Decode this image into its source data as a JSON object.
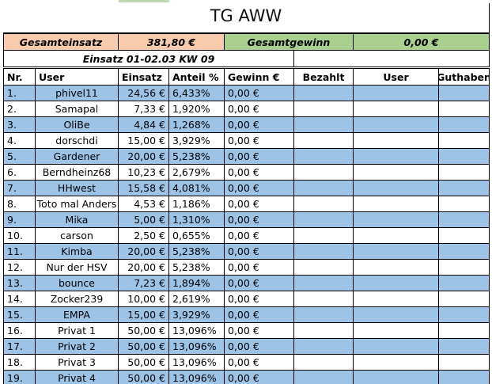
{
  "title": "TG AWW",
  "summary": {
    "gesamteinsatz_label": "Gesamteinsatz",
    "gesamteinsatz_value": "381,80 €",
    "gesamtgewinn_label": "Gesamtgewinn",
    "gesamtgewinn_value": "0,00 €"
  },
  "einsatz_label": "Einsatz 01-02.03 KW 09",
  "headers": {
    "nr": "Nr.",
    "user": "User",
    "einsatz": "Einsatz",
    "anteil": "Anteil %",
    "gewinn": "Gewinn €",
    "bezahlt": "Bezahlt",
    "user2": "User",
    "guthaben": "Guthaben"
  },
  "rows": [
    {
      "nr": "1.",
      "user": "phivel11",
      "einsatz": "24,56 €",
      "anteil": "6,433%",
      "gewinn": "0,00 €"
    },
    {
      "nr": "2.",
      "user": "Samapal",
      "einsatz": "7,33 €",
      "anteil": "1,920%",
      "gewinn": "0,00 €"
    },
    {
      "nr": "3.",
      "user": "OliBe",
      "einsatz": "4,84 €",
      "anteil": "1,268%",
      "gewinn": "0,00 €"
    },
    {
      "nr": "4.",
      "user": "dorschdi",
      "einsatz": "15,00 €",
      "anteil": "3,929%",
      "gewinn": "0,00 €"
    },
    {
      "nr": "5.",
      "user": "Gardener",
      "einsatz": "20,00 €",
      "anteil": "5,238%",
      "gewinn": "0,00 €"
    },
    {
      "nr": "6.",
      "user": "Berndheinz68",
      "einsatz": "10,23 €",
      "anteil": "2,679%",
      "gewinn": "0,00 €"
    },
    {
      "nr": "7.",
      "user": "HHwest",
      "einsatz": "15,58 €",
      "anteil": "4,081%",
      "gewinn": "0,00 €"
    },
    {
      "nr": "8.",
      "user": "Toto mal Anders",
      "einsatz": "4,53 €",
      "anteil": "1,186%",
      "gewinn": "0,00 €"
    },
    {
      "nr": "9.",
      "user": "Mika",
      "einsatz": "5,00 €",
      "anteil": "1,310%",
      "gewinn": "0,00 €"
    },
    {
      "nr": "10.",
      "user": "carson",
      "einsatz": "2,50 €",
      "anteil": "0,655%",
      "gewinn": "0,00 €"
    },
    {
      "nr": "11.",
      "user": "Kimba",
      "einsatz": "20,00 €",
      "anteil": "5,238%",
      "gewinn": "0,00 €"
    },
    {
      "nr": "12.",
      "user": "Nur der HSV",
      "einsatz": "20,00 €",
      "anteil": "5,238%",
      "gewinn": "0,00 €"
    },
    {
      "nr": "13.",
      "user": "bounce",
      "einsatz": "7,23 €",
      "anteil": "1,894%",
      "gewinn": "0,00 €"
    },
    {
      "nr": "14.",
      "user": "Zocker239",
      "einsatz": "10,00 €",
      "anteil": "2,619%",
      "gewinn": "0,00 €"
    },
    {
      "nr": "15.",
      "user": "EMPA",
      "einsatz": "15,00 €",
      "anteil": "3,929%",
      "gewinn": "0,00 €"
    },
    {
      "nr": "16.",
      "user": "Privat 1",
      "einsatz": "50,00 €",
      "anteil": "13,096%",
      "gewinn": "0,00 €"
    },
    {
      "nr": "17.",
      "user": "Privat 2",
      "einsatz": "50,00 €",
      "anteil": "13,096%",
      "gewinn": "0,00 €"
    },
    {
      "nr": "18.",
      "user": "Privat 3",
      "einsatz": "50,00 €",
      "anteil": "13,096%",
      "gewinn": "0,00 €"
    },
    {
      "nr": "19.",
      "user": "Privat 4",
      "einsatz": "50,00 €",
      "anteil": "13,096%",
      "gewinn": "0,00 €"
    }
  ],
  "colors": {
    "orange": "#f8cbad",
    "green": "#a9d08e",
    "blue_row": "#9dc3e6"
  }
}
